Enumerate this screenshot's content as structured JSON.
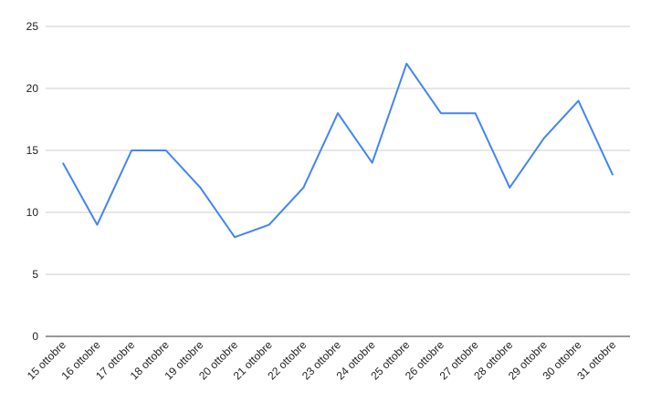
{
  "chart_data": {
    "type": "line",
    "categories": [
      "15 ottobre",
      "16 ottobre",
      "17 ottobre",
      "18 ottobre",
      "19 ottobre",
      "20 ottobre",
      "21 ottobre",
      "22 ottobre",
      "23 ottobre",
      "24 ottobre",
      "25 ottobre",
      "26 ottobre",
      "27 ottobre",
      "28 ottobre",
      "29 ottobre",
      "30 ottobre",
      "31 ottobre"
    ],
    "values": [
      14,
      9,
      15,
      15,
      12,
      8,
      9,
      12,
      18,
      14,
      22,
      18,
      18,
      12,
      16,
      19,
      13
    ],
    "color": "#4285f4",
    "ylim": [
      0,
      25
    ],
    "yticks": [
      0,
      5,
      10,
      15,
      20,
      25
    ],
    "grid": true
  }
}
